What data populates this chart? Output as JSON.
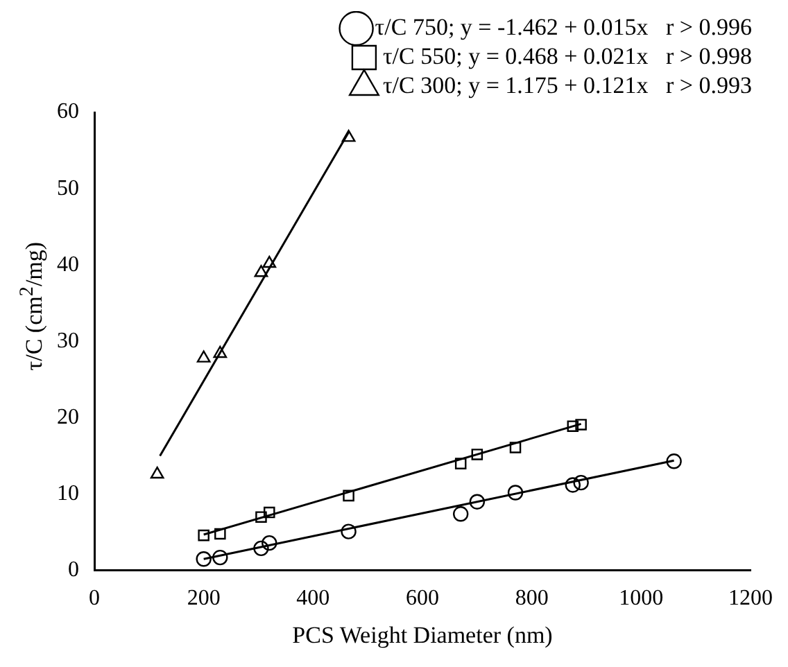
{
  "chart_data": {
    "type": "scatter",
    "xlabel": "PCS Weight Diameter (nm)",
    "ylabel": "τ/C (cm$^{2}$/mg)",
    "xlim": [
      0,
      1200
    ],
    "xticks": [
      0,
      200,
      400,
      600,
      800,
      1000,
      1200
    ],
    "ylim": [
      0,
      60
    ],
    "yticks": [
      0,
      10,
      20,
      30,
      40,
      50,
      60
    ],
    "grid": false,
    "legend": "top right",
    "series": [
      {
        "name": "τ/C 750; y = -1.462 + 0.015x   r > 0.996",
        "color": "#000000",
        "marker": "circle",
        "x": [
          200,
          230,
          305,
          320,
          465,
          670,
          700,
          770,
          875,
          890,
          1060
        ],
        "values": [
          1.5,
          1.7,
          2.9,
          3.6,
          5.1,
          7.4,
          9.0,
          10.2,
          11.2,
          11.5,
          14.3
        ]
      },
      {
        "name": "τ/C 550; y = 0.468 + 0.021x   r > 0.998",
        "color": "#000000",
        "marker": "square",
        "x": [
          200,
          230,
          305,
          320,
          465,
          670,
          700,
          770,
          875,
          890
        ],
        "values": [
          4.6,
          4.8,
          7.0,
          7.6,
          9.8,
          14.0,
          15.2,
          16.1,
          18.9,
          19.1
        ]
      },
      {
        "name": "τ/C 300; y = 1.175 + 0.121x   r > 0.993",
        "color": "#000000",
        "marker": "triangle",
        "x": [
          115,
          200,
          230,
          305,
          320,
          465
        ],
        "values": [
          12.6,
          27.8,
          28.4,
          39.0,
          40.2,
          56.7
        ]
      },
      {
        "type": "line",
        "color": "#000000",
        "marker": "none",
        "x": [
          200,
          1060
        ],
        "values": [
          1.5,
          14.4
        ]
      },
      {
        "type": "line",
        "color": "#000000",
        "marker": "none",
        "x": [
          200,
          890
        ],
        "values": [
          4.7,
          19.2
        ]
      },
      {
        "type": "line",
        "color": "#000000",
        "marker": "none",
        "x": [
          120,
          465
        ],
        "values": [
          15.0,
          57.4
        ]
      }
    ]
  }
}
